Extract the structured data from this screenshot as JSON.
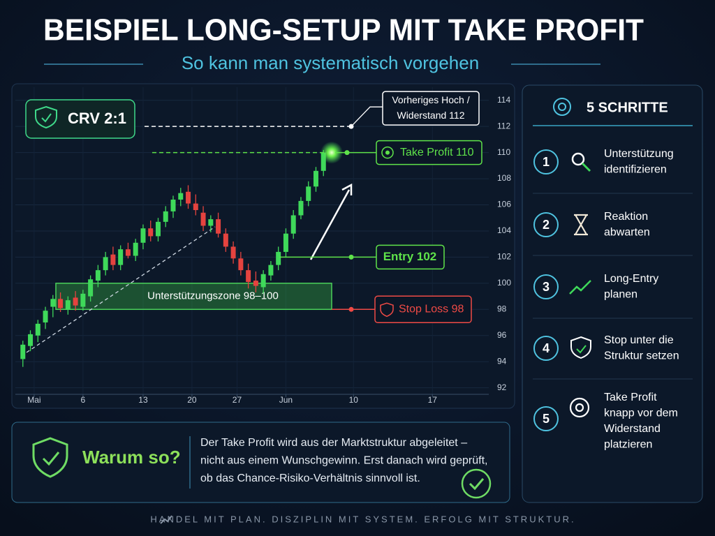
{
  "header": {
    "title": "BEISPIEL LONG-SETUP MIT TAKE PROFIT",
    "subtitle": "So kann man systematisch vorgehen"
  },
  "chart_data": {
    "type": "candlestick",
    "x": [
      0,
      1,
      2,
      3,
      4,
      5,
      6,
      7,
      8,
      9,
      10,
      11,
      12,
      13,
      14,
      15,
      16,
      17,
      18,
      19,
      20,
      21,
      22,
      23,
      24,
      25,
      26,
      27,
      28,
      29,
      30,
      31,
      32,
      33,
      34,
      35,
      36,
      37,
      38,
      39,
      40
    ],
    "open": [
      94.2,
      95.2,
      96.0,
      97.0,
      98.2,
      98.8,
      98.0,
      98.9,
      98.2,
      99.0,
      100.2,
      101.0,
      102.2,
      101.4,
      102.6,
      102.1,
      103.1,
      104.2,
      103.6,
      104.7,
      105.5,
      106.4,
      107.0,
      106.1,
      105.4,
      104.4,
      104.9,
      103.8,
      102.8,
      101.9,
      101.0,
      100.2,
      99.7,
      100.6,
      101.4,
      102.4,
      103.8,
      105.2,
      106.3,
      107.4,
      108.6
    ],
    "high": [
      95.6,
      96.4,
      97.2,
      98.2,
      99.1,
      99.3,
      99.0,
      99.4,
      99.5,
      100.6,
      101.4,
      102.4,
      102.8,
      102.9,
      103.1,
      103.4,
      104.5,
      104.8,
      105.0,
      105.9,
      106.7,
      107.3,
      107.5,
      106.8,
      105.9,
      105.2,
      105.4,
      104.2,
      103.2,
      102.4,
      101.5,
      100.9,
      101.0,
      101.7,
      102.8,
      104.2,
      105.6,
      106.6,
      107.8,
      108.9,
      110.2
    ],
    "low": [
      93.6,
      94.8,
      95.5,
      96.5,
      97.4,
      97.8,
      97.6,
      97.9,
      97.9,
      98.6,
      99.7,
      100.6,
      101.0,
      101.0,
      101.9,
      101.7,
      102.6,
      103.2,
      103.2,
      104.3,
      105.0,
      105.9,
      105.7,
      105.2,
      104.0,
      103.9,
      103.5,
      102.4,
      101.5,
      100.6,
      99.6,
      99.3,
      99.2,
      100.2,
      101.0,
      102.0,
      103.4,
      104.9,
      105.9,
      107.0,
      108.2
    ],
    "close": [
      95.3,
      96.1,
      96.9,
      97.9,
      98.8,
      98.1,
      98.7,
      98.3,
      99.2,
      100.3,
      101.0,
      102.0,
      101.4,
      102.6,
      102.1,
      103.1,
      104.2,
      103.6,
      104.7,
      105.5,
      106.4,
      106.9,
      106.1,
      105.6,
      104.4,
      104.9,
      103.8,
      102.8,
      101.9,
      101.0,
      100.1,
      99.8,
      100.7,
      101.4,
      102.4,
      103.8,
      105.2,
      106.3,
      107.4,
      108.6,
      110.0
    ],
    "up_color": "#3fd95a",
    "down_color": "#e5433f",
    "xlim": [
      -1,
      62
    ],
    "xticks": [
      {
        "value": 1.5,
        "label": "Mai"
      },
      {
        "value": 8,
        "label": "6"
      },
      {
        "value": 16,
        "label": "13"
      },
      {
        "value": 22.5,
        "label": "20"
      },
      {
        "value": 28.5,
        "label": "27"
      },
      {
        "value": 35,
        "label": "Jun"
      },
      {
        "value": 44,
        "label": "10"
      },
      {
        "value": 54.5,
        "label": "17"
      }
    ],
    "ylim": [
      91.5,
      115
    ],
    "yticks": [
      92,
      94,
      96,
      98,
      100,
      102,
      104,
      106,
      108,
      110,
      112,
      114
    ],
    "grid": true,
    "badge": "CRV 2:1",
    "zone": {
      "label": "Unterstützungszone 98–100",
      "from": 98,
      "to": 100
    },
    "levels": [
      {
        "label": [
          "Vorheriges Hoch /",
          "Widerstand 112"
        ],
        "value": 112,
        "color": "#ffffff"
      },
      {
        "label": "Take Profit 110",
        "value": 110,
        "color": "#5fe34a"
      },
      {
        "label": "Entry 102",
        "value": 102,
        "color": "#5fe34a"
      },
      {
        "label": "Stop Loss 98",
        "value": 98,
        "color": "#ef4a45"
      }
    ]
  },
  "steps": {
    "title": "5 SCHRITTE",
    "items": [
      {
        "number": "1",
        "lines": [
          "Unterstützung",
          "identifizieren"
        ]
      },
      {
        "number": "2",
        "lines": [
          "Reaktion",
          "abwarten"
        ]
      },
      {
        "number": "3",
        "lines": [
          "Long-Entry",
          "planen"
        ]
      },
      {
        "number": "4",
        "lines": [
          "Stop unter die",
          "Struktur setzen"
        ]
      },
      {
        "number": "5",
        "lines": [
          "Take Profit",
          "knapp vor dem",
          "Widerstand",
          "platzieren"
        ]
      }
    ]
  },
  "note": {
    "title": "Warum so?",
    "lines": [
      "Der Take Profit wird aus der Marktstruktur abgeleitet –",
      "nicht aus einem Wunschgewinn. Erst danach wird geprüft,",
      "ob das Chance-Risiko-Verhältnis sinnvoll ist."
    ]
  },
  "footer": "HANDEL MIT PLAN. DISZIPLIN MIT SYSTEM. ERFOLG MIT STRUKTUR."
}
